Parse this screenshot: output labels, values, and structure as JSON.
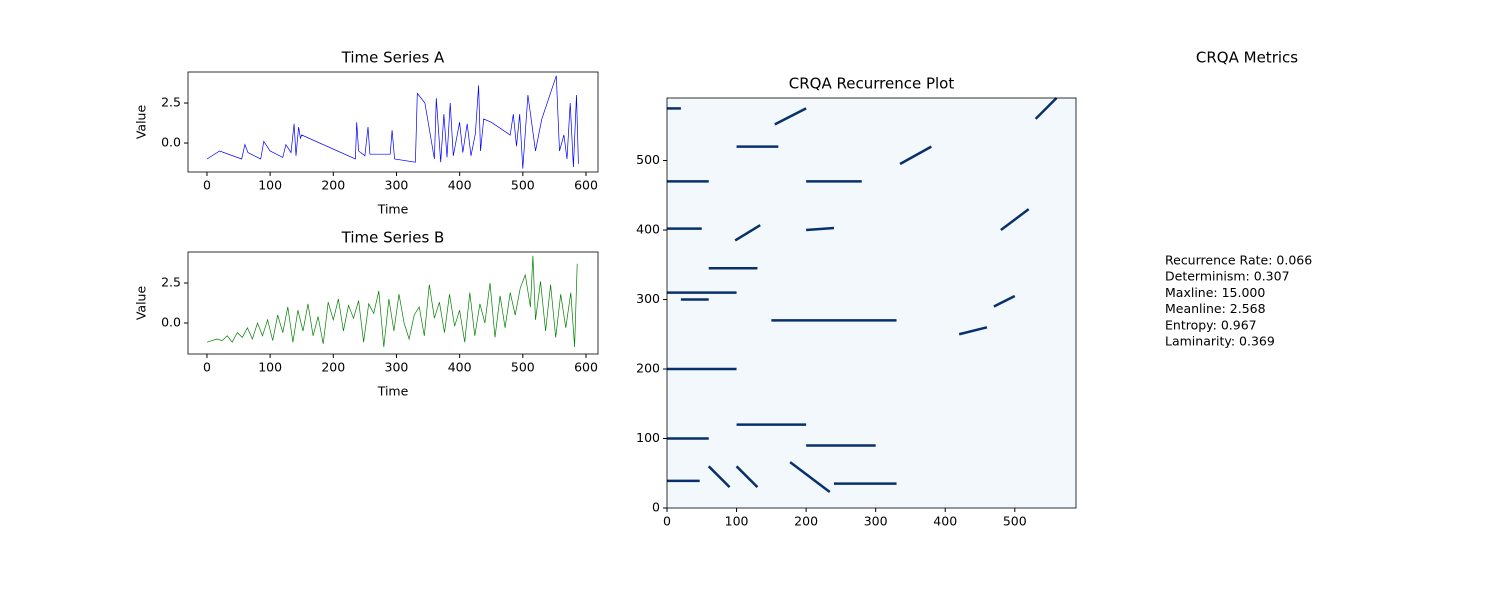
{
  "chart_data": [
    {
      "type": "line",
      "title": "Time Series A",
      "xlabel": "Time",
      "ylabel": "Value",
      "xlim": [
        -30,
        619
      ],
      "ylim": [
        -1.81,
        4.44
      ],
      "xticks": [
        0,
        100,
        200,
        300,
        400,
        500,
        600
      ],
      "yticks": [
        {
          "value": 0,
          "label": "0.0"
        },
        {
          "value": 2.5,
          "label": "2.5"
        }
      ],
      "series": [
        {
          "color": "#0000ff",
          "x": [
            0,
            20,
            55,
            60,
            65,
            85,
            90,
            100,
            120,
            125,
            133,
            138,
            141,
            145,
            148,
            150,
            235,
            237,
            240,
            250,
            255,
            258,
            290,
            293,
            297,
            330,
            333,
            345,
            360,
            363,
            370,
            375,
            380,
            385,
            390,
            400,
            405,
            412,
            418,
            425,
            430,
            433,
            438,
            450,
            480,
            485,
            490,
            495,
            500,
            508,
            520,
            530,
            553,
            558,
            565,
            570,
            575,
            580,
            585,
            588
          ],
          "values": [
            -1.0,
            -0.5,
            -1.0,
            -0.1,
            -0.6,
            -1.0,
            0.1,
            -0.5,
            -0.9,
            -0.1,
            -0.6,
            1.2,
            -0.8,
            1.0,
            0.3,
            0.5,
            -1.0,
            1.3,
            -0.5,
            -0.8,
            1.0,
            -0.7,
            -0.7,
            0.8,
            -1.0,
            -1.2,
            3.1,
            2.5,
            -1.0,
            2.8,
            -1.2,
            1.8,
            -0.9,
            2.5,
            -0.8,
            1.3,
            -0.6,
            1.2,
            -0.8,
            0.6,
            3.6,
            -0.5,
            1.5,
            1.3,
            0.5,
            1.8,
            -0.2,
            1.8,
            -1.6,
            3.0,
            -0.5,
            1.5,
            4.2,
            -0.5,
            0.5,
            -1.0,
            2.5,
            -1.5,
            3.0,
            -1.3
          ]
        }
      ]
    },
    {
      "type": "line",
      "title": "Time Series B",
      "xlabel": "Time",
      "ylabel": "Value",
      "xlim": [
        -30,
        619
      ],
      "ylim": [
        -1.94,
        4.44
      ],
      "xticks": [
        0,
        100,
        200,
        300,
        400,
        500,
        600
      ],
      "yticks": [
        {
          "value": 0,
          "label": "0.0"
        },
        {
          "value": 2.5,
          "label": "2.5"
        }
      ],
      "series": [
        {
          "color": "#008000",
          "x": [
            0,
            8,
            16,
            24,
            32,
            40,
            48,
            56,
            64,
            72,
            80,
            88,
            96,
            104,
            112,
            120,
            128,
            136,
            144,
            152,
            160,
            168,
            176,
            184,
            192,
            200,
            208,
            216,
            224,
            232,
            240,
            248,
            256,
            264,
            272,
            280,
            288,
            296,
            304,
            312,
            320,
            328,
            336,
            344,
            352,
            360,
            368,
            376,
            384,
            392,
            400,
            408,
            416,
            424,
            432,
            440,
            448,
            456,
            464,
            472,
            480,
            488,
            496,
            504,
            512,
            516,
            520,
            528,
            536,
            544,
            552,
            560,
            568,
            576,
            582,
            586
          ],
          "values": [
            -1.2,
            -1.1,
            -1.0,
            -1.1,
            -0.8,
            -1.2,
            -0.6,
            -0.9,
            -0.3,
            -1.0,
            0.0,
            -0.8,
            0.2,
            -1.1,
            0.5,
            -0.6,
            1.0,
            -1.2,
            0.8,
            -0.5,
            1.2,
            -0.8,
            0.4,
            -1.3,
            1.3,
            0.2,
            1.5,
            -0.5,
            1.1,
            0.3,
            1.4,
            -1.2,
            1.2,
            0.6,
            2.0,
            -1.5,
            1.5,
            -0.5,
            1.8,
            0.0,
            -1.0,
            0.5,
            1.0,
            -0.8,
            2.4,
            0.3,
            1.3,
            -0.6,
            1.8,
            -0.2,
            0.8,
            -1.2,
            1.9,
            -0.8,
            1.2,
            0.0,
            2.5,
            -0.9,
            1.7,
            -0.3,
            1.9,
            0.5,
            2.2,
            3.0,
            1.0,
            4.2,
            0.2,
            2.6,
            -0.5,
            2.4,
            -0.9,
            1.8,
            -0.3,
            1.9,
            -1.5,
            3.7
          ]
        }
      ]
    },
    {
      "type": "recurrence",
      "title": "CRQA Recurrence Plot",
      "xlim": [
        0,
        588
      ],
      "ylim": [
        0,
        590
      ],
      "xticks": [
        0,
        100,
        200,
        300,
        400,
        500
      ],
      "yticks": [
        0,
        100,
        200,
        300,
        400,
        500,
        600
      ],
      "color": "#08306b",
      "segments": [
        [
          155,
          552,
          200,
          575
        ],
        [
          177,
          66,
          234,
          23
        ],
        [
          60,
          60,
          90,
          30
        ],
        [
          100,
          60,
          130,
          30
        ],
        [
          0,
          39,
          47,
          39
        ],
        [
          240,
          35,
          330,
          35
        ],
        [
          0,
          402,
          50,
          402
        ],
        [
          98,
          385,
          134,
          407
        ],
        [
          200,
          400,
          240,
          403
        ],
        [
          0,
          470,
          60,
          470
        ],
        [
          335,
          495,
          380,
          520
        ],
        [
          470,
          290,
          500,
          305
        ],
        [
          480,
          400,
          520,
          430
        ],
        [
          530,
          560,
          560,
          590
        ],
        [
          0,
          575,
          20,
          575
        ],
        [
          20,
          300,
          60,
          300
        ],
        [
          0,
          310,
          100,
          310
        ],
        [
          200,
          90,
          300,
          90
        ],
        [
          100,
          120,
          200,
          120
        ],
        [
          0,
          200,
          100,
          200
        ],
        [
          150,
          270,
          330,
          270
        ],
        [
          0,
          100,
          60,
          100
        ],
        [
          200,
          470,
          280,
          470
        ],
        [
          100,
          520,
          160,
          520
        ],
        [
          60,
          345,
          130,
          345
        ],
        [
          420,
          250,
          460,
          260
        ]
      ]
    },
    {
      "type": "text",
      "title": "CRQA Metrics",
      "lines": [
        "Recurrence Rate: 0.066",
        "Determinism: 0.307",
        "Maxline: 15.000",
        "Meanline: 2.568",
        "Entropy: 0.967",
        "Laminarity: 0.369"
      ]
    }
  ]
}
